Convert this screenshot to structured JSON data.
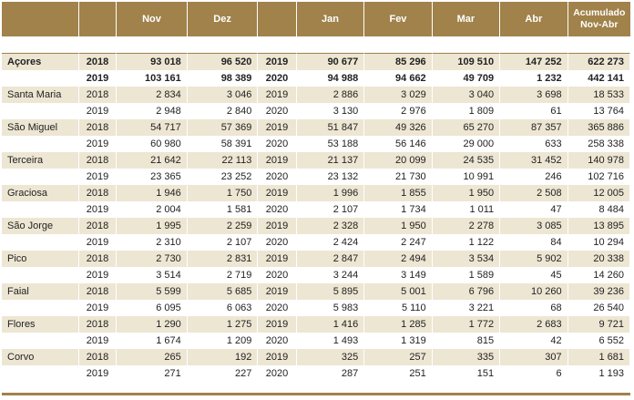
{
  "header": {
    "months_a": [
      "Nov",
      "Dez"
    ],
    "months_b": [
      "Jan",
      "Fev",
      "Mar",
      "Abr"
    ],
    "accum_line1": "Acumulado",
    "accum_line2": "Nov-Abr"
  },
  "colors": {
    "header_bg": "#a0824a",
    "band": "#ede6d3"
  },
  "rows": [
    {
      "name": "Açores",
      "y1": "2018",
      "nov": "93 018",
      "dez": "96 520",
      "y2": "2019",
      "jan": "90 677",
      "fev": "85 296",
      "mar": "109 510",
      "abr": "147 252",
      "acc": "622 273"
    },
    {
      "name": "",
      "y1": "2019",
      "nov": "103 161",
      "dez": "98 389",
      "y2": "2020",
      "jan": "94 988",
      "fev": "94 662",
      "mar": "49 709",
      "abr": "1 232",
      "acc": "442 141"
    },
    {
      "name": "Santa Maria",
      "y1": "2018",
      "nov": "2 834",
      "dez": "3 046",
      "y2": "2019",
      "jan": "2 886",
      "fev": "3 029",
      "mar": "3 040",
      "abr": "3 698",
      "acc": "18 533"
    },
    {
      "name": "",
      "y1": "2019",
      "nov": "2 948",
      "dez": "2 840",
      "y2": "2020",
      "jan": "3 130",
      "fev": "2 976",
      "mar": "1 809",
      "abr": "61",
      "acc": "13 764"
    },
    {
      "name": "São Miguel",
      "y1": "2018",
      "nov": "54 717",
      "dez": "57 369",
      "y2": "2019",
      "jan": "51 847",
      "fev": "49 326",
      "mar": "65 270",
      "abr": "87 357",
      "acc": "365 886"
    },
    {
      "name": "",
      "y1": "2019",
      "nov": "60 980",
      "dez": "58 391",
      "y2": "2020",
      "jan": "53 188",
      "fev": "56 146",
      "mar": "29 000",
      "abr": "633",
      "acc": "258 338"
    },
    {
      "name": "Terceira",
      "y1": "2018",
      "nov": "21 642",
      "dez": "22 113",
      "y2": "2019",
      "jan": "21 137",
      "fev": "20 099",
      "mar": "24 535",
      "abr": "31 452",
      "acc": "140 978"
    },
    {
      "name": "",
      "y1": "2019",
      "nov": "23 365",
      "dez": "23 252",
      "y2": "2020",
      "jan": "23 132",
      "fev": "21 730",
      "mar": "10 991",
      "abr": "246",
      "acc": "102 716"
    },
    {
      "name": "Graciosa",
      "y1": "2018",
      "nov": "1 946",
      "dez": "1 750",
      "y2": "2019",
      "jan": "1 996",
      "fev": "1 855",
      "mar": "1 950",
      "abr": "2 508",
      "acc": "12 005"
    },
    {
      "name": "",
      "y1": "2019",
      "nov": "2 004",
      "dez": "1 581",
      "y2": "2020",
      "jan": "2 107",
      "fev": "1 734",
      "mar": "1 011",
      "abr": "47",
      "acc": "8 484"
    },
    {
      "name": "São Jorge",
      "y1": "2018",
      "nov": "1 995",
      "dez": "2 259",
      "y2": "2019",
      "jan": "2 328",
      "fev": "1 950",
      "mar": "2 278",
      "abr": "3 085",
      "acc": "13 895"
    },
    {
      "name": "",
      "y1": "2019",
      "nov": "2 310",
      "dez": "2 107",
      "y2": "2020",
      "jan": "2 424",
      "fev": "2 247",
      "mar": "1 122",
      "abr": "84",
      "acc": "10 294"
    },
    {
      "name": "Pico",
      "y1": "2018",
      "nov": "2 730",
      "dez": "2 831",
      "y2": "2019",
      "jan": "2 847",
      "fev": "2 494",
      "mar": "3 534",
      "abr": "5 902",
      "acc": "20 338"
    },
    {
      "name": "",
      "y1": "2019",
      "nov": "3 514",
      "dez": "2 719",
      "y2": "2020",
      "jan": "3 244",
      "fev": "3 149",
      "mar": "1 589",
      "abr": "45",
      "acc": "14 260"
    },
    {
      "name": "Faial",
      "y1": "2018",
      "nov": "5 599",
      "dez": "5 685",
      "y2": "2019",
      "jan": "5 895",
      "fev": "5 001",
      "mar": "6 796",
      "abr": "10 260",
      "acc": "39 236"
    },
    {
      "name": "",
      "y1": "2019",
      "nov": "6 095",
      "dez": "6 063",
      "y2": "2020",
      "jan": "5 983",
      "fev": "5 110",
      "mar": "3 221",
      "abr": "68",
      "acc": "26 540"
    },
    {
      "name": "Flores",
      "y1": "2018",
      "nov": "1 290",
      "dez": "1 275",
      "y2": "2019",
      "jan": "1 416",
      "fev": "1 285",
      "mar": "1 772",
      "abr": "2 683",
      "acc": "9 721"
    },
    {
      "name": "",
      "y1": "2019",
      "nov": "1 674",
      "dez": "1 209",
      "y2": "2020",
      "jan": "1 493",
      "fev": "1 319",
      "mar": "815",
      "abr": "42",
      "acc": "6 552"
    },
    {
      "name": "Corvo",
      "y1": "2018",
      "nov": "265",
      "dez": "192",
      "y2": "2019",
      "jan": "325",
      "fev": "257",
      "mar": "335",
      "abr": "307",
      "acc": "1 681"
    },
    {
      "name": "",
      "y1": "2019",
      "nov": "271",
      "dez": "227",
      "y2": "2020",
      "jan": "287",
      "fev": "251",
      "mar": "151",
      "abr": "6",
      "acc": "1 193"
    }
  ]
}
